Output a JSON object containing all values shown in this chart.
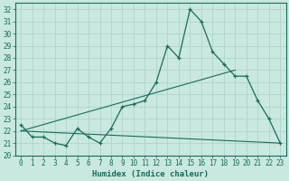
{
  "xlabel": "Humidex (Indice chaleur)",
  "background_color": "#c8e8e0",
  "grid_color": "#b0d4cc",
  "line_color": "#1a6b5a",
  "xlim": [
    -0.5,
    23.5
  ],
  "ylim": [
    20,
    32.5
  ],
  "yticks": [
    20,
    21,
    22,
    23,
    24,
    25,
    26,
    27,
    28,
    29,
    30,
    31,
    32
  ],
  "xticks": [
    0,
    1,
    2,
    3,
    4,
    5,
    6,
    7,
    8,
    9,
    10,
    11,
    12,
    13,
    14,
    15,
    16,
    17,
    18,
    19,
    20,
    21,
    22,
    23
  ],
  "series1_x": [
    0,
    1,
    2,
    3,
    4,
    5,
    6,
    7,
    8,
    9,
    10,
    11,
    12,
    13,
    14,
    15,
    16,
    17,
    18,
    19,
    20,
    21,
    22,
    23
  ],
  "series1_y": [
    22.5,
    21.5,
    21.5,
    21.0,
    20.8,
    22.2,
    21.5,
    21.0,
    22.2,
    24.0,
    24.2,
    24.5,
    26.0,
    29.0,
    28.0,
    32.0,
    31.0,
    28.5,
    27.5,
    26.5,
    26.5,
    24.5,
    23.0,
    21.0
  ],
  "series2_x": [
    0,
    23
  ],
  "series2_y": [
    22.0,
    21.0
  ],
  "series3_x": [
    0,
    19
  ],
  "series3_y": [
    22.0,
    27.0
  ],
  "tick_fontsize": 5.5,
  "xlabel_fontsize": 6.5
}
